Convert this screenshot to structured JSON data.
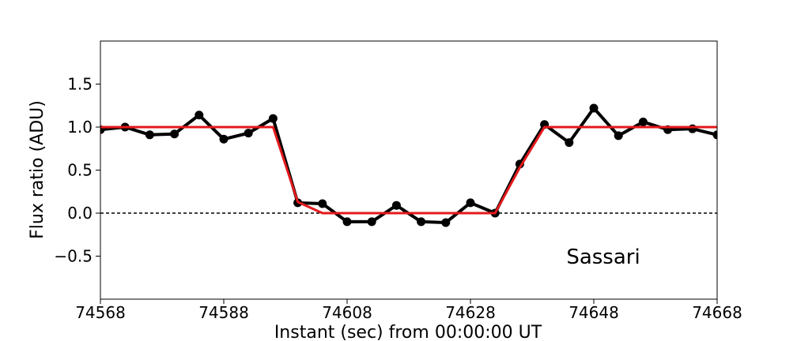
{
  "chart_data": {
    "type": "line",
    "title": "",
    "xlabel": "Instant (sec) from 00:00:00 UT",
    "ylabel": "Flux ratio (ADU)",
    "xlim": [
      74568,
      74668
    ],
    "ylim": [
      -1.0,
      2.0
    ],
    "xticks": [
      74568,
      74588,
      74608,
      74628,
      74648,
      74668
    ],
    "xtick_labels": [
      "74568",
      "74588",
      "74608",
      "74628",
      "74648",
      "74668"
    ],
    "yticks": [
      -0.5,
      0.0,
      0.5,
      1.0,
      1.5
    ],
    "ytick_labels": [
      "−0.5",
      "0.0",
      "0.5",
      "1.0",
      "1.5"
    ],
    "grid": false,
    "annotation": "Sassari",
    "reference_line": {
      "y": 0.0,
      "style": "dashed",
      "color": "#000000"
    },
    "series": [
      {
        "role": "observed",
        "color": "#000000",
        "marker": "circle",
        "x": [
          74568,
          74572,
          74576,
          74580,
          74584,
          74588,
          74592,
          74596,
          74600,
          74604,
          74608,
          74612,
          74616,
          74620,
          74624,
          74628,
          74632,
          74636,
          74640,
          74644,
          74648,
          74652,
          74656,
          74660,
          74664,
          74668
        ],
        "y": [
          0.97,
          1.0,
          0.91,
          0.92,
          1.14,
          0.86,
          0.93,
          1.1,
          0.12,
          0.11,
          -0.1,
          -0.1,
          0.09,
          -0.1,
          -0.11,
          0.12,
          0.0,
          0.57,
          1.03,
          0.82,
          1.22,
          0.9,
          1.06,
          0.97,
          0.98,
          0.91
        ]
      },
      {
        "role": "model",
        "color": "#e31a1c",
        "marker": "none",
        "x": [
          74568,
          74596,
          74600,
          74604,
          74632,
          74636,
          74640,
          74668
        ],
        "y": [
          1.0,
          1.0,
          0.13,
          0.0,
          0.0,
          0.53,
          1.0,
          1.0
        ]
      }
    ]
  }
}
